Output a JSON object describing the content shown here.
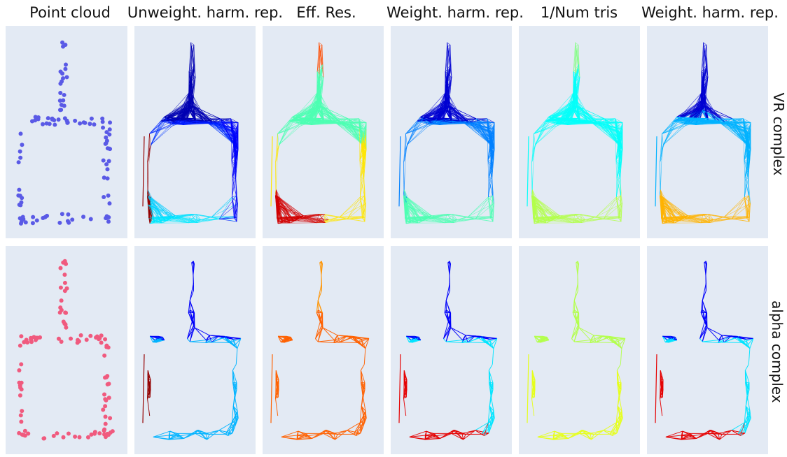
{
  "figure": {
    "column_titles": [
      "Point cloud",
      "Unweight. harm. rep.",
      "Eff. Res.",
      "Weight. harm. rep.",
      "1/Num tris",
      "Weight. harm. rep."
    ],
    "row_titles": [
      "VR complex",
      "alpha complex"
    ]
  },
  "colors": {
    "panel_bg": "#e3eaf4",
    "vr_points": "#5a5ae6",
    "alpha_points": "#f05a7e",
    "colormap": "jet"
  },
  "panels": [
    {
      "row": 0,
      "col": 0,
      "kind": "points"
    },
    {
      "row": 0,
      "col": 1,
      "kind": "graph",
      "color_profile": "dark-blue-top, blue-right, cyan-bottom, dark-red-left-edge"
    },
    {
      "row": 0,
      "col": 2,
      "kind": "graph",
      "color_profile": "orange-top, green-mid, red-bottom-left, yellow-right"
    },
    {
      "row": 0,
      "col": 3,
      "kind": "graph",
      "color_profile": "dark-blue-top, blue-cyan-mid, yellow-green-bottom"
    },
    {
      "row": 0,
      "col": 4,
      "kind": "graph",
      "color_profile": "green-top, cyan-mid, yellow-green-bottom"
    },
    {
      "row": 0,
      "col": 5,
      "kind": "graph",
      "color_profile": "dark-blue-top, cyan-mid, yellow-orange-bottom"
    },
    {
      "row": 1,
      "col": 0,
      "kind": "points"
    },
    {
      "row": 1,
      "col": 1,
      "kind": "graph",
      "color_profile": "blue-top, cyan-bottom, dark-red-left-edge"
    },
    {
      "row": 1,
      "col": 2,
      "kind": "graph",
      "color_profile": "yellow-orange-all"
    },
    {
      "row": 1,
      "col": 3,
      "kind": "graph",
      "color_profile": "blue-top, cyan-mid, red-edges"
    },
    {
      "row": 1,
      "col": 4,
      "kind": "graph",
      "color_profile": "yellow-green-all"
    },
    {
      "row": 1,
      "col": 5,
      "kind": "graph",
      "color_profile": "blue-top, cyan-mid, red-edges"
    }
  ]
}
